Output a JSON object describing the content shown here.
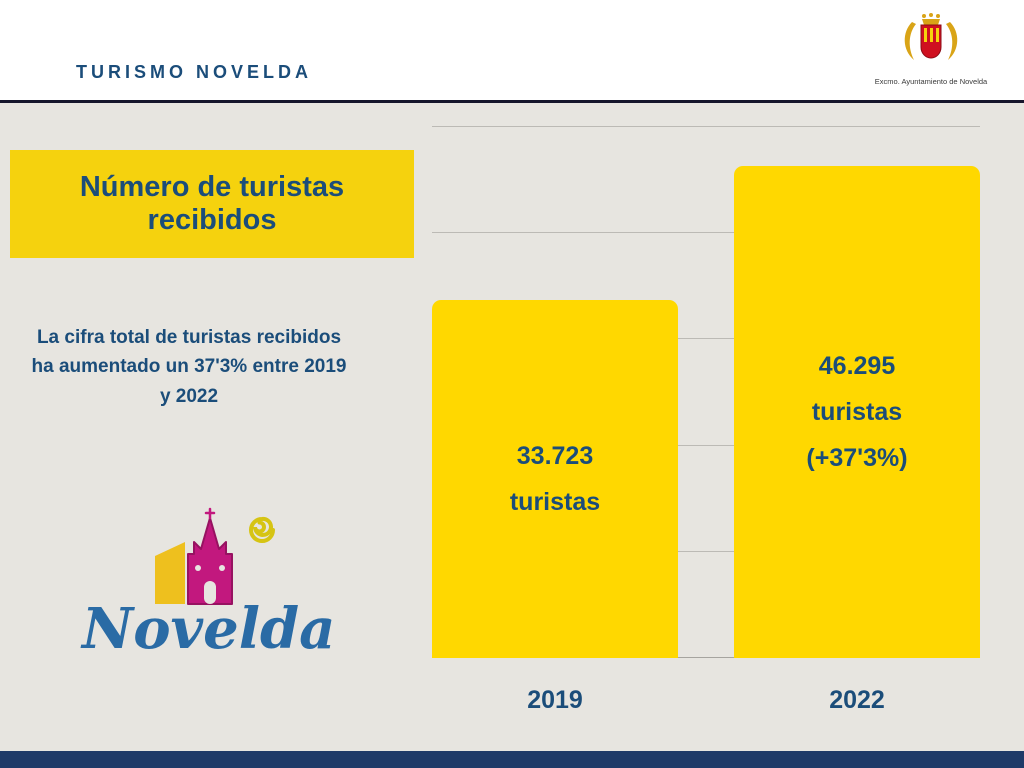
{
  "header": {
    "brand": "TURISMO NOVELDA",
    "crest_caption": "Excmo. Ayuntamiento de Novelda"
  },
  "left": {
    "title": "Número de turistas recibidos",
    "paragraph": "La cifra total de turistas recibidos ha aumentado un 37'3% entre 2019 y 2022",
    "logo_text": "Novelda"
  },
  "chart_data": {
    "type": "bar",
    "title": "Número de turistas recibidos",
    "categories": [
      "2019",
      "2022"
    ],
    "values": [
      33723,
      46295
    ],
    "bar_labels": [
      [
        "33.723",
        "turistas"
      ],
      [
        "46.295",
        "turistas",
        "(+37'3%)"
      ]
    ],
    "xlabel": "",
    "ylabel": "",
    "ylim": [
      0,
      50000
    ],
    "gridline_interval": 10000,
    "grid": true,
    "legend": false,
    "bar_color": "#ffd800",
    "label_color": "#1b4d7a",
    "pct_change": "+37'3%"
  },
  "colors": {
    "background": "#e7e5e0",
    "header_bg": "#ffffff",
    "accent_yellow": "#f5d20e",
    "dark_blue_text": "#1b4d7a",
    "footer_navy": "#1f3a68",
    "logo_magenta": "#c2187e",
    "logo_blue": "#2a6ba5"
  }
}
